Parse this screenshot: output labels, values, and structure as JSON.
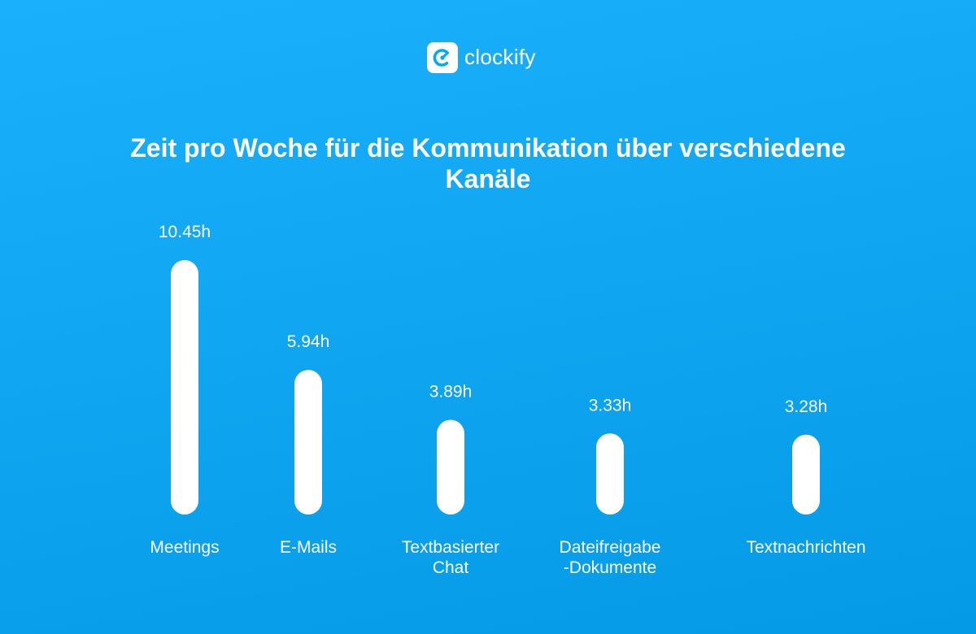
{
  "brand": {
    "name": "clockify",
    "logo_icon": "clockify-logo-icon",
    "colors": {
      "background": "#13aaf5",
      "bars": "#ffffff",
      "logo_mark": "#03a9f4"
    }
  },
  "chart_data": {
    "type": "bar",
    "title": "Zeit pro Woche für die Kommunikation über verschiedene Kanäle",
    "xlabel": "",
    "ylabel": "",
    "unit": "h",
    "categories": [
      [
        "Meetings"
      ],
      [
        "E-Mails"
      ],
      [
        "Textbasierter",
        "Chat"
      ],
      [
        "Dateifreigabe",
        "-Dokumente"
      ],
      [
        "Textnachrichten"
      ]
    ],
    "values": [
      10.45,
      5.94,
      3.89,
      3.33,
      3.28
    ],
    "value_labels": [
      "10.45h",
      "5.94h",
      "3.89h",
      "3.33h",
      "3.28h"
    ],
    "ylim": [
      0,
      10.45
    ],
    "grid": false,
    "legend": "none"
  }
}
